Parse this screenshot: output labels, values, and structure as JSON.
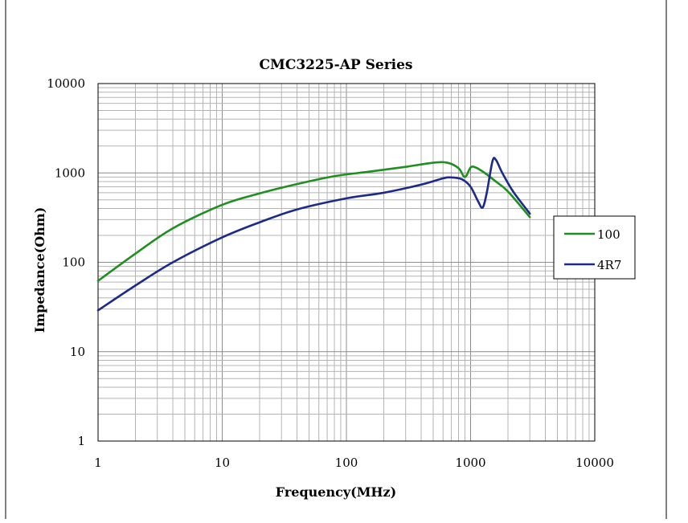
{
  "chart_data": {
    "type": "line",
    "title": "CMC3225-AP Series",
    "xlabel": "Frequency(MHz)",
    "ylabel": "Impedance(Ohm)",
    "x_scale": "log",
    "y_scale": "log",
    "xlim": [
      1,
      10000
    ],
    "ylim": [
      1,
      10000
    ],
    "x_ticks": [
      "1",
      "10",
      "100",
      "1000",
      "10000"
    ],
    "y_ticks": [
      "1",
      "10",
      "100",
      "1000",
      "10000"
    ],
    "grid": true,
    "legend_position": "right",
    "series": [
      {
        "name": "100",
        "color": "#1f8f1f",
        "points": [
          [
            1,
            62
          ],
          [
            2,
            125
          ],
          [
            4,
            240
          ],
          [
            10,
            440
          ],
          [
            20,
            590
          ],
          [
            40,
            750
          ],
          [
            80,
            920
          ],
          [
            150,
            1030
          ],
          [
            300,
            1170
          ],
          [
            500,
            1300
          ],
          [
            650,
            1300
          ],
          [
            800,
            1130
          ],
          [
            900,
            900
          ],
          [
            1000,
            1150
          ],
          [
            1100,
            1150
          ],
          [
            1300,
            1000
          ],
          [
            1600,
            800
          ],
          [
            2000,
            620
          ],
          [
            3000,
            320
          ]
        ]
      },
      {
        "name": "4R7",
        "color": "#1c2a8a",
        "points": [
          [
            1,
            29
          ],
          [
            2,
            55
          ],
          [
            4,
            100
          ],
          [
            10,
            190
          ],
          [
            20,
            280
          ],
          [
            40,
            390
          ],
          [
            100,
            520
          ],
          [
            200,
            600
          ],
          [
            400,
            740
          ],
          [
            600,
            870
          ],
          [
            700,
            890
          ],
          [
            850,
            850
          ],
          [
            1000,
            700
          ],
          [
            1150,
            480
          ],
          [
            1250,
            410
          ],
          [
            1350,
            600
          ],
          [
            1500,
            1350
          ],
          [
            1600,
            1400
          ],
          [
            1800,
            1000
          ],
          [
            2200,
            620
          ],
          [
            3000,
            350
          ]
        ]
      }
    ]
  }
}
